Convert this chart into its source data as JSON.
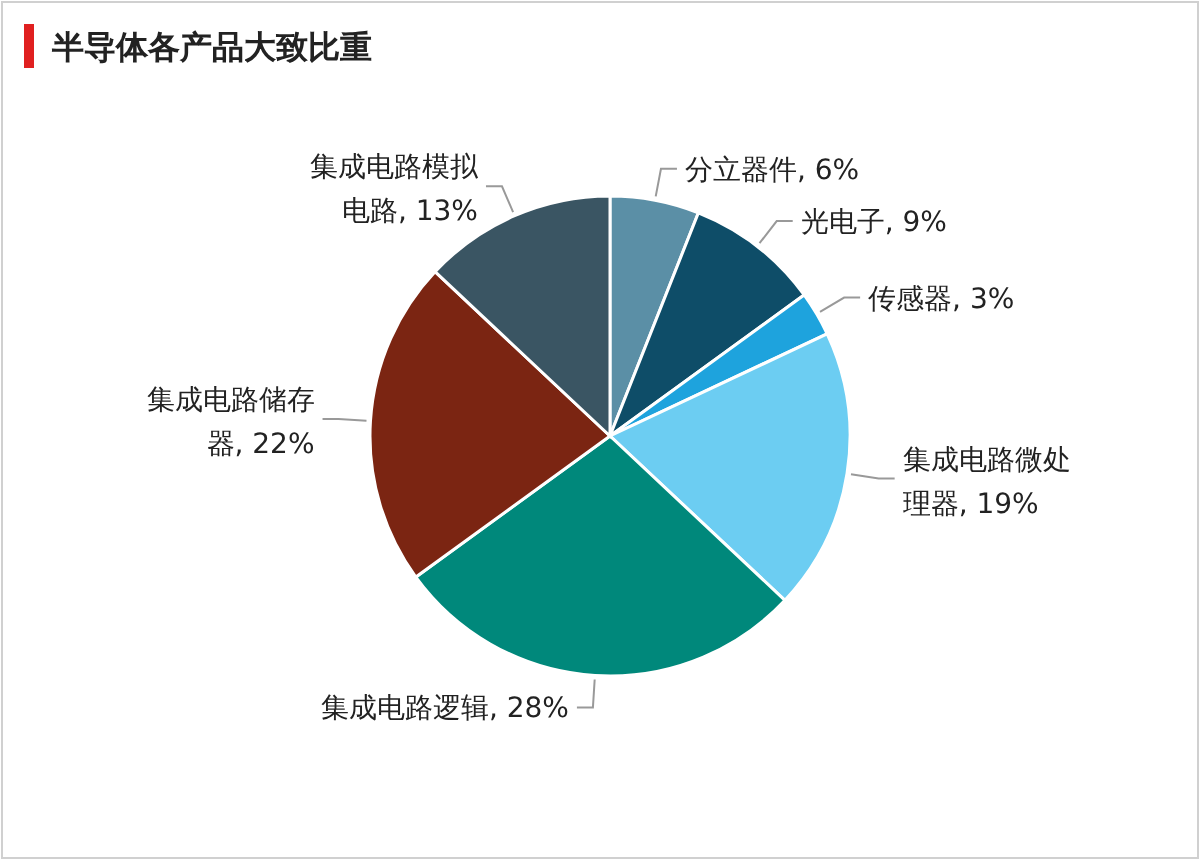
{
  "chart_data": {
    "type": "pie",
    "title": "半导体各产品大致比重",
    "categories": [
      "分立器件",
      "光电子",
      "传感器",
      "集成电路微处理器",
      "集成电路逻辑",
      "集成电路储存器",
      "集成电路模拟电路"
    ],
    "values": [
      6,
      9,
      3,
      19,
      28,
      22,
      13
    ],
    "value_labels": [
      "6%",
      "9%",
      "3%",
      "19%",
      "28%",
      "22%",
      "13%"
    ],
    "colors": [
      "#5b8fa6",
      "#0e4d68",
      "#1ea3dd",
      "#6ccdf2",
      "#00887b",
      "#7b2512",
      "#3a5563"
    ]
  }
}
